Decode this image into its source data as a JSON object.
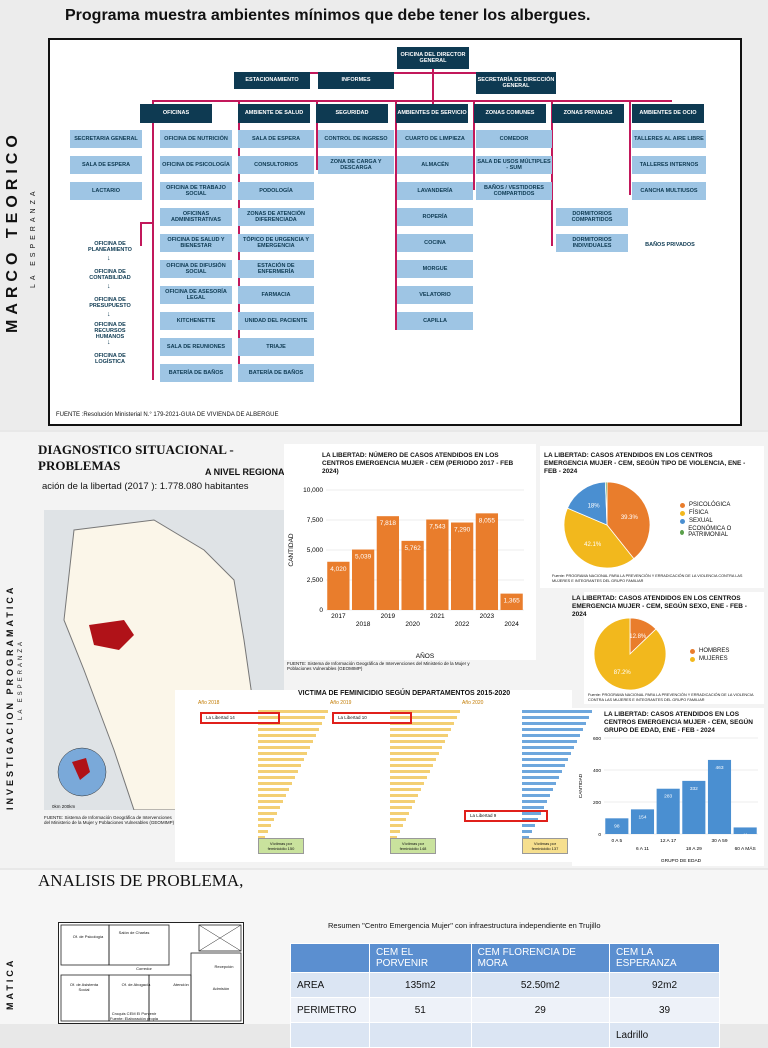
{
  "slide1": {
    "title": "Programa muestra ambientes mínimos que debe tener los albergues.",
    "side_title": "MARCO TEORICO",
    "side_subtitle": "LA ESPERANZA",
    "org": {
      "director": "OFICINA DEL DIRECTOR GENERAL",
      "estacionamiento": "ESTACIONAMIENTO",
      "informes": "INFORMES",
      "secretaria": "SECRETARÍA DE DIRECCIÓN GENERAL",
      "heads": [
        "OFICINAS",
        "AMBIENTE DE SALUD",
        "SEGURIDAD",
        "AMBIENTES DE SERVICIO",
        "ZONAS COMUNES",
        "ZONAS PRIVADAS",
        "AMBIENTES DE OCIO"
      ],
      "col_left": [
        "SECRETARIA GENERAL",
        "SALA DE ESPERA",
        "LACTARIO"
      ],
      "col_oficinas": [
        "OFICINA DE NUTRICIÓN",
        "OFICINA DE PSICOLOGÍA",
        "OFICINA DE TRABAJO SOCIAL",
        "OFICINAS ADMINISTRATIVAS",
        "OFICINA DE SALUD Y BIENESTAR",
        "OFICINA DE DIFUSIÓN SOCIAL",
        "OFICINA DE ASESORÍA LEGAL",
        "KITCHENETTE",
        "SALA DE REUNIONES",
        "BATERÍA DE BAÑOS"
      ],
      "col_salud": [
        "SALA DE ESPERA",
        "CONSULTORIOS",
        "PODOLOGÍA",
        "ZONAS DE ATENCIÓN DIFERENCIADA",
        "TÓPICO DE URGENCIA Y EMERGENCIA",
        "ESTACIÓN DE ENFERMERÍA",
        "FARMACIA",
        "UNIDAD DEL PACIENTE",
        "TRIAJE",
        "BATERÍA DE BAÑOS"
      ],
      "col_seguridad": [
        "CONTROL DE INGRESO",
        "ZONA DE CARGA Y DESCARGA"
      ],
      "col_servicio": [
        "CUARTO DE LIMPIEZA",
        "ALMACÉN",
        "LAVANDERÍA",
        "ROPERÍA",
        "COCINA",
        "MORGUE",
        "VELATORIO",
        "CAPILLA"
      ],
      "col_comunes": [
        "COMEDOR",
        "SALA DE USOS MÚLTIPLES - SUM",
        "BAÑOS / VESTIDORES COMPARTIDOS"
      ],
      "col_privadas": [
        "DORMITORIOS COMPARTIDOS",
        "DORMITORIOS INDIVIDUALES"
      ],
      "banos_privados": "BAÑOS PRIVADOS",
      "col_ocio": [
        "TALLERES AL AIRE LIBRE",
        "TALLERES INTERNOS",
        "CANCHA MULTIUSOS"
      ],
      "sub_oficinas": [
        "OFICINA DE PLANEAMIENTO",
        "OFICINA DE CONTABILIDAD",
        "OFICINA DE PRESUPUESTO",
        "OFICINA DE RECURSOS HUMANOS",
        "OFICINA DE LOGÍSTICA"
      ]
    },
    "source": "FUENTE :Resolución Ministerial N.° 179-2021-GUIA DE VIVIENDA DE ALBERGUE"
  },
  "slide2": {
    "heading_1": "DIAGNOSTICO SITUACIONAL -",
    "heading_2": "PROBLEMAS",
    "nivel_regional": "A NIVEL REGIONAL",
    "population": "ación de la libertad (2017 ): 1.778.080 habitantes",
    "side_title": "INVESTIGACION PROGRAMATICA",
    "side_subtitle": "LA ESPERANZA",
    "map_note": "FUENTE: Sistema de Información Geográfica de Intervenciones del Ministerio de la Mujer y Poblaciones Vulnerables (GEOMIMP)",
    "map_scale": "0km        200km",
    "bar_chart_note": "FUENTE: Sistema de Información Geográfica de Intervenciones del Ministerio de la Mujer y Poblaciones Vulnerables (GEOMIMP)",
    "feminicidio_title": "VICTIMA DE FEMINICIDIO SEGÚN DEPARTAMENTOS 2015-2020",
    "femi_panels": [
      {
        "year": "Año 2018",
        "label": "Víctimas por feminicidio",
        "total": "150"
      },
      {
        "year": "Año 2019",
        "label": "Víctimas por feminicidio",
        "total": "148"
      },
      {
        "year": "Año 2020",
        "label": "Víctimas por feminicidio",
        "total": "137"
      }
    ],
    "femi_highlight": [
      "La Libertad",
      "La Libertad",
      "La Libertad"
    ],
    "femi_values": [
      "14",
      "10",
      "9"
    ],
    "pie_note": "Fuente: PROGRAMA NACIONAL PARA LA PREVENCIÓN Y ERRADICACIÓN DE LA VIOLENCIA CONTRA LAS MUJERES E INTEGRANTES DEL GRUPO FAMILIAR",
    "pie2_note": "Fuente: PROGRAMA NACIONAL PARA LA PREVENCIÓN Y ERRADICACIÓN DE LA VIOLENCIA CONTRA LAS MUJERES E INTEGRANTES DEL GRUPO FAMILIAR"
  },
  "slide3": {
    "title": "ANALISIS  DE PROBLEMA,",
    "side_title": "MATICA",
    "table_title": "Resumen \"Centro Emergencia Mujer\" con infraestructura independiente en Trujillo",
    "table_headers": [
      "",
      "CEM EL PORVENIR",
      "CEM FLORENCIA DE MORA",
      "CEM LA ESPERANZA"
    ],
    "table_rows": [
      [
        "AREA",
        "135m2",
        "52.50m2",
        "92m2"
      ],
      [
        "PERIMETRO",
        "51",
        "29",
        "39"
      ],
      [
        "",
        "",
        "",
        "Ladrillo"
      ]
    ],
    "plan_labels": [
      "Of. de Psicología",
      "Salón de Charlas",
      "Recepción",
      "Of. de Asistenta Social",
      "Of. de Abogacía",
      "Atención",
      "Admisión",
      "Corredor"
    ],
    "plan_note": "Croquis CEM El Porvenir\nFuente: Elaboración propia"
  },
  "chart_data": [
    {
      "type": "bar",
      "title": "LA LIBERTAD: NÚMERO DE CASOS ATENDIDOS EN LOS CENTROS EMERGENCIA MUJER - CEM (PERIODO 2017 - FEB 2024)",
      "xlabel": "AÑOS",
      "ylabel": "CANTIDAD",
      "categories": [
        "2017",
        "2018",
        "2019",
        "2020",
        "2021",
        "2022",
        "2023",
        "2024"
      ],
      "values": [
        4020,
        5039,
        7818,
        5762,
        7543,
        7290,
        8055,
        1365
      ],
      "value_labels": [
        "4,020",
        "5,039",
        "7,818",
        "5,762",
        "7,543",
        "7,290",
        "8,055",
        "1,365"
      ],
      "ylim": [
        0,
        10000
      ],
      "yticks": [
        "0",
        "2,500",
        "5,000",
        "7,500",
        "10,000"
      ],
      "color": "#e97d2c"
    },
    {
      "type": "pie",
      "title": "LA LIBERTAD: CASOS ATENDIDOS EN LOS CENTROS EMERGENCIA MUJER - CEM, SEGÚN TIPO DE VIOLENCIA, ENE - FEB - 2024",
      "labels": [
        "PSICOLÓGICA",
        "FÍSICA",
        "SEXUAL",
        "ECONÓMICA O PATRIMONIAL"
      ],
      "values": [
        39.3,
        42.1,
        18,
        0.6
      ],
      "value_labels": [
        "39.3%",
        "42.1%",
        "18%",
        ""
      ],
      "colors": [
        "#e97d2c",
        "#f2b81d",
        "#4a8fd1",
        "#5aa04a"
      ]
    },
    {
      "type": "pie",
      "title": "LA LIBERTAD: CASOS ATENDIDOS EN LOS CENTROS EMERGENCIA MUJER - CEM, SEGÚN SEXO, ENE - FEB - 2024",
      "labels": [
        "HOMBRES",
        "MUJERES"
      ],
      "values": [
        12.8,
        87.2
      ],
      "value_labels": [
        "12.8%",
        "87.2%"
      ],
      "colors": [
        "#e97d2c",
        "#f2b81d"
      ]
    },
    {
      "type": "bar",
      "title": "LA LIBERTAD: CASOS ATENDIDOS EN LOS CENTROS EMERGENCIA MUJER - CEM, SEGÚN GRUPO DE EDAD, ENE - FEB - 2024",
      "xlabel": "GRUPO DE EDAD",
      "ylabel": "CANTIDAD",
      "categories": [
        "0 A 5",
        "6 A 11",
        "12 A 17",
        "18 A 29",
        "30 A 59",
        "60 A MÁS"
      ],
      "values": [
        98,
        154,
        283,
        332,
        463,
        41
      ],
      "value_labels": [
        "98",
        "154",
        "283",
        "332",
        "463",
        "41"
      ],
      "ylim": [
        0,
        600
      ],
      "yticks": [
        "0",
        "200",
        "400",
        "600"
      ],
      "color": "#4a8fd1"
    }
  ]
}
